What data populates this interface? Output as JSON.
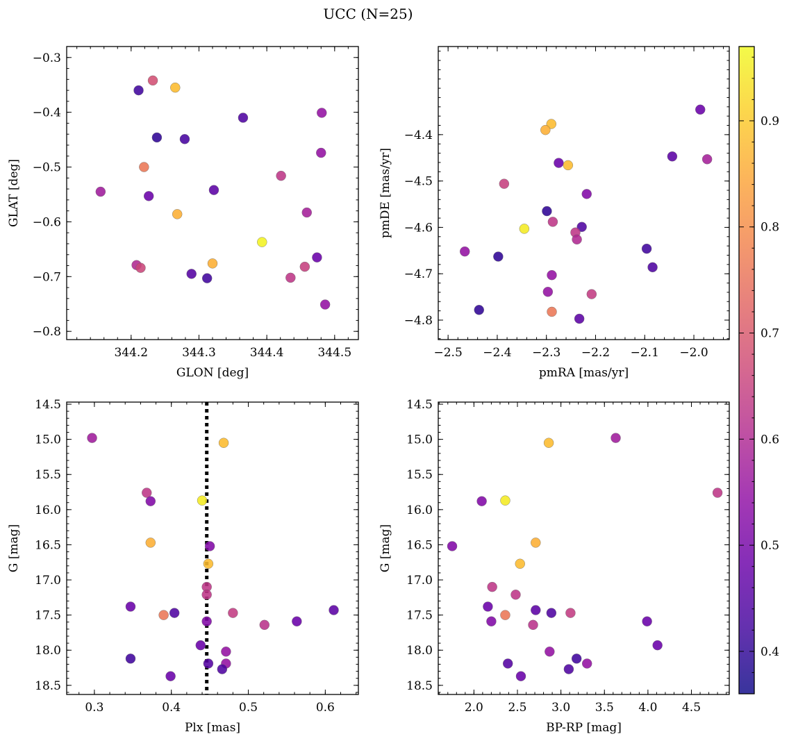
{
  "figure": {
    "title": "UCC (N=25)"
  },
  "colorbar": {
    "range": [
      0.36,
      0.97
    ],
    "ticks": [
      0.4,
      0.5,
      0.6,
      0.7,
      0.8,
      0.9
    ],
    "tick_labels": [
      "0.4",
      "0.5",
      "0.6",
      "0.7",
      "0.8",
      "0.9"
    ],
    "colormap": "plasma"
  },
  "chart_data": [
    {
      "type": "scatter",
      "xlabel": "GLON [deg]",
      "ylabel": "GLAT [deg]",
      "xlim": [
        344.105,
        344.535
      ],
      "ylim": [
        -0.815,
        -0.28
      ],
      "y_inverted": false,
      "xticks": [
        344.2,
        344.3,
        344.4,
        344.5
      ],
      "xtick_labels": [
        "344.2",
        "344.3",
        "344.4",
        "344.5"
      ],
      "yticks": [
        -0.8,
        -0.7,
        -0.6,
        -0.5,
        -0.4,
        -0.3
      ],
      "ytick_labels": [
        "−0.8",
        "−0.7",
        "−0.6",
        "−0.5",
        "−0.4",
        "−0.3"
      ],
      "points": [
        {
          "x": 344.232,
          "y": -0.342,
          "c": 0.68
        },
        {
          "x": 344.265,
          "y": -0.355,
          "c": 0.88
        },
        {
          "x": 344.211,
          "y": -0.36,
          "c": 0.42
        },
        {
          "x": 344.365,
          "y": -0.41,
          "c": 0.44
        },
        {
          "x": 344.481,
          "y": -0.401,
          "c": 0.55
        },
        {
          "x": 344.238,
          "y": -0.446,
          "c": 0.4
        },
        {
          "x": 344.279,
          "y": -0.449,
          "c": 0.43
        },
        {
          "x": 344.48,
          "y": -0.474,
          "c": 0.55
        },
        {
          "x": 344.219,
          "y": -0.5,
          "c": 0.76
        },
        {
          "x": 344.421,
          "y": -0.516,
          "c": 0.63
        },
        {
          "x": 344.155,
          "y": -0.545,
          "c": 0.57
        },
        {
          "x": 344.322,
          "y": -0.542,
          "c": 0.46
        },
        {
          "x": 344.226,
          "y": -0.553,
          "c": 0.48
        },
        {
          "x": 344.459,
          "y": -0.583,
          "c": 0.58
        },
        {
          "x": 344.268,
          "y": -0.586,
          "c": 0.86
        },
        {
          "x": 344.393,
          "y": -0.637,
          "c": 0.96
        },
        {
          "x": 344.474,
          "y": -0.665,
          "c": 0.48
        },
        {
          "x": 344.208,
          "y": -0.679,
          "c": 0.6
        },
        {
          "x": 344.214,
          "y": -0.684,
          "c": 0.66
        },
        {
          "x": 344.32,
          "y": -0.676,
          "c": 0.86
        },
        {
          "x": 344.456,
          "y": -0.682,
          "c": 0.65
        },
        {
          "x": 344.289,
          "y": -0.695,
          "c": 0.45
        },
        {
          "x": 344.312,
          "y": -0.703,
          "c": 0.42
        },
        {
          "x": 344.435,
          "y": -0.702,
          "c": 0.63
        },
        {
          "x": 344.486,
          "y": -0.751,
          "c": 0.55
        }
      ]
    },
    {
      "type": "scatter",
      "xlabel": "pmRA [mas/yr]",
      "ylabel": "pmDE [mas/yr]",
      "xlim": [
        -2.52,
        -1.928
      ],
      "ylim": [
        -4.842,
        -4.21
      ],
      "y_inverted": false,
      "xticks": [
        -2.5,
        -2.4,
        -2.3,
        -2.2,
        -2.1,
        -2.0
      ],
      "xtick_labels": [
        "−2.5",
        "−2.4",
        "−2.3",
        "−2.2",
        "−2.1",
        "−2.0"
      ],
      "yticks": [
        -4.8,
        -4.7,
        -4.6,
        -4.5,
        -4.4
      ],
      "ytick_labels": [
        "−4.8",
        "−4.7",
        "−4.6",
        "−4.5",
        "−4.4"
      ],
      "points": [
        {
          "x": -1.987,
          "y": -4.346,
          "c": 0.48
        },
        {
          "x": -2.29,
          "y": -4.377,
          "c": 0.88
        },
        {
          "x": -2.302,
          "y": -4.39,
          "c": 0.86
        },
        {
          "x": -2.044,
          "y": -4.447,
          "c": 0.46
        },
        {
          "x": -1.973,
          "y": -4.453,
          "c": 0.58
        },
        {
          "x": -2.275,
          "y": -4.461,
          "c": 0.48
        },
        {
          "x": -2.256,
          "y": -4.466,
          "c": 0.88
        },
        {
          "x": -2.386,
          "y": -4.506,
          "c": 0.65
        },
        {
          "x": -2.218,
          "y": -4.528,
          "c": 0.52
        },
        {
          "x": -2.299,
          "y": -4.565,
          "c": 0.4
        },
        {
          "x": -2.287,
          "y": -4.588,
          "c": 0.63
        },
        {
          "x": -2.228,
          "y": -4.599,
          "c": 0.44
        },
        {
          "x": -2.345,
          "y": -4.603,
          "c": 0.95
        },
        {
          "x": -2.241,
          "y": -4.611,
          "c": 0.63
        },
        {
          "x": -2.238,
          "y": -4.626,
          "c": 0.6
        },
        {
          "x": -2.096,
          "y": -4.646,
          "c": 0.42
        },
        {
          "x": -2.466,
          "y": -4.652,
          "c": 0.55
        },
        {
          "x": -2.398,
          "y": -4.663,
          "c": 0.4
        },
        {
          "x": -2.084,
          "y": -4.686,
          "c": 0.44
        },
        {
          "x": -2.289,
          "y": -4.703,
          "c": 0.55
        },
        {
          "x": -2.297,
          "y": -4.739,
          "c": 0.55
        },
        {
          "x": -2.208,
          "y": -4.744,
          "c": 0.64
        },
        {
          "x": -2.437,
          "y": -4.778,
          "c": 0.4
        },
        {
          "x": -2.289,
          "y": -4.782,
          "c": 0.76
        },
        {
          "x": -2.233,
          "y": -4.797,
          "c": 0.46
        }
      ]
    },
    {
      "type": "scatter",
      "xlabel": "Plx [mas]",
      "ylabel": "G [mag]",
      "xlim": [
        0.264,
        0.643
      ],
      "ylim": [
        14.47,
        18.63
      ],
      "y_inverted": true,
      "xticks": [
        0.3,
        0.4,
        0.5,
        0.6
      ],
      "xtick_labels": [
        "0.3",
        "0.4",
        "0.5",
        "0.6"
      ],
      "yticks": [
        14.5,
        15.0,
        15.5,
        16.0,
        16.5,
        17.0,
        17.5,
        18.0,
        18.5
      ],
      "ytick_labels": [
        "14.5",
        "15.0",
        "15.5",
        "16.0",
        "16.5",
        "17.0",
        "17.5",
        "18.0",
        "18.5"
      ],
      "vline": 0.446,
      "points": [
        {
          "x": 0.297,
          "y": 14.98,
          "c": 0.57
        },
        {
          "x": 0.468,
          "y": 15.05,
          "c": 0.88
        },
        {
          "x": 0.368,
          "y": 15.76,
          "c": 0.63
        },
        {
          "x": 0.373,
          "y": 15.88,
          "c": 0.52
        },
        {
          "x": 0.44,
          "y": 15.87,
          "c": 0.95
        },
        {
          "x": 0.373,
          "y": 16.47,
          "c": 0.86
        },
        {
          "x": 0.45,
          "y": 16.52,
          "c": 0.52
        },
        {
          "x": 0.448,
          "y": 16.77,
          "c": 0.88
        },
        {
          "x": 0.446,
          "y": 17.1,
          "c": 0.63
        },
        {
          "x": 0.446,
          "y": 17.21,
          "c": 0.63
        },
        {
          "x": 0.347,
          "y": 17.38,
          "c": 0.48
        },
        {
          "x": 0.611,
          "y": 17.43,
          "c": 0.46
        },
        {
          "x": 0.404,
          "y": 17.47,
          "c": 0.44
        },
        {
          "x": 0.48,
          "y": 17.47,
          "c": 0.64
        },
        {
          "x": 0.39,
          "y": 17.5,
          "c": 0.76
        },
        {
          "x": 0.446,
          "y": 17.59,
          "c": 0.52
        },
        {
          "x": 0.563,
          "y": 17.59,
          "c": 0.48
        },
        {
          "x": 0.521,
          "y": 17.64,
          "c": 0.62
        },
        {
          "x": 0.438,
          "y": 17.93,
          "c": 0.48
        },
        {
          "x": 0.471,
          "y": 18.02,
          "c": 0.55
        },
        {
          "x": 0.347,
          "y": 18.12,
          "c": 0.42
        },
        {
          "x": 0.448,
          "y": 18.19,
          "c": 0.45
        },
        {
          "x": 0.471,
          "y": 18.19,
          "c": 0.55
        },
        {
          "x": 0.466,
          "y": 18.27,
          "c": 0.44
        },
        {
          "x": 0.399,
          "y": 18.37,
          "c": 0.48
        }
      ]
    },
    {
      "type": "scatter",
      "xlabel": "BP-RP [mag]",
      "ylabel": "G [mag]",
      "xlim": [
        1.59,
        4.935
      ],
      "ylim": [
        14.47,
        18.63
      ],
      "y_inverted": true,
      "xticks": [
        2.0,
        2.5,
        3.0,
        3.5,
        4.0,
        4.5
      ],
      "xtick_labels": [
        "2.0",
        "2.5",
        "3.0",
        "3.5",
        "4.0",
        "4.5"
      ],
      "yticks": [
        14.5,
        15.0,
        15.5,
        16.0,
        16.5,
        17.0,
        17.5,
        18.0,
        18.5
      ],
      "ytick_labels": [
        "14.5",
        "15.0",
        "15.5",
        "16.0",
        "16.5",
        "17.0",
        "17.5",
        "18.0",
        "18.5"
      ],
      "points": [
        {
          "x": 3.63,
          "y": 14.98,
          "c": 0.57
        },
        {
          "x": 2.86,
          "y": 15.05,
          "c": 0.88
        },
        {
          "x": 4.8,
          "y": 15.76,
          "c": 0.63
        },
        {
          "x": 2.09,
          "y": 15.88,
          "c": 0.52
        },
        {
          "x": 2.36,
          "y": 15.87,
          "c": 0.95
        },
        {
          "x": 2.71,
          "y": 16.47,
          "c": 0.86
        },
        {
          "x": 1.75,
          "y": 16.52,
          "c": 0.52
        },
        {
          "x": 2.53,
          "y": 16.77,
          "c": 0.88
        },
        {
          "x": 2.21,
          "y": 17.1,
          "c": 0.63
        },
        {
          "x": 2.48,
          "y": 17.21,
          "c": 0.63
        },
        {
          "x": 2.16,
          "y": 17.38,
          "c": 0.48
        },
        {
          "x": 2.71,
          "y": 17.43,
          "c": 0.46
        },
        {
          "x": 2.89,
          "y": 17.47,
          "c": 0.44
        },
        {
          "x": 3.11,
          "y": 17.47,
          "c": 0.64
        },
        {
          "x": 2.36,
          "y": 17.5,
          "c": 0.76
        },
        {
          "x": 2.2,
          "y": 17.59,
          "c": 0.52
        },
        {
          "x": 3.99,
          "y": 17.59,
          "c": 0.48
        },
        {
          "x": 2.68,
          "y": 17.64,
          "c": 0.62
        },
        {
          "x": 4.11,
          "y": 17.93,
          "c": 0.48
        },
        {
          "x": 2.87,
          "y": 18.02,
          "c": 0.55
        },
        {
          "x": 3.18,
          "y": 18.12,
          "c": 0.42
        },
        {
          "x": 2.39,
          "y": 18.19,
          "c": 0.45
        },
        {
          "x": 3.3,
          "y": 18.19,
          "c": 0.55
        },
        {
          "x": 3.09,
          "y": 18.27,
          "c": 0.44
        },
        {
          "x": 2.54,
          "y": 18.37,
          "c": 0.48
        }
      ]
    }
  ]
}
